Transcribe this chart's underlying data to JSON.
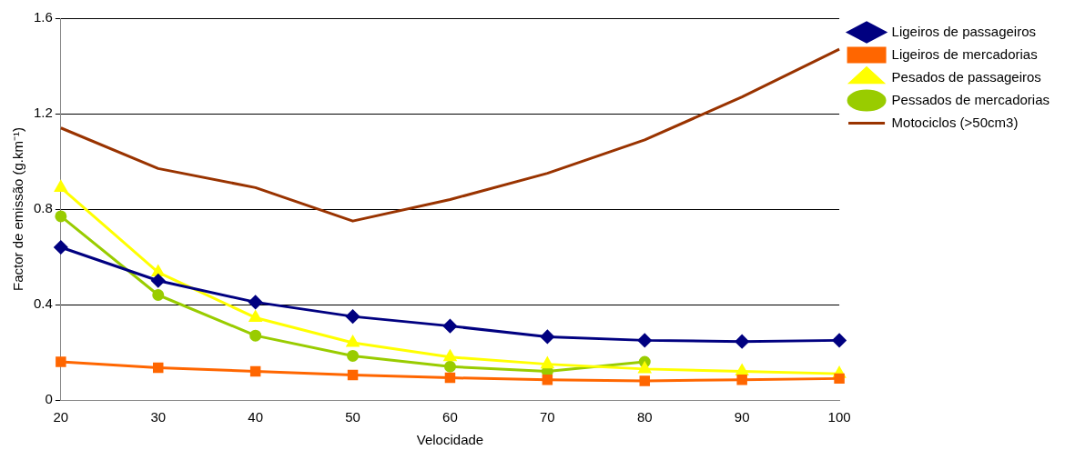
{
  "chart_data": {
    "type": "line",
    "xlabel": "Velocidade",
    "ylabel": "Factor de emissão (g.km⁻¹)",
    "categories": [
      "20",
      "30",
      "40",
      "50",
      "60",
      "70",
      "80",
      "90",
      "100"
    ],
    "ylim": [
      0,
      1.6
    ],
    "yticks": [
      0,
      0.4,
      0.8,
      1.2,
      1.6
    ],
    "grid": "y",
    "legend": "right",
    "series": [
      {
        "name": "Ligeiros de passageiros",
        "color": "#000080",
        "marker": "diamond",
        "values": [
          0.64,
          0.5,
          0.41,
          0.35,
          0.31,
          0.265,
          0.25,
          0.245,
          0.25
        ]
      },
      {
        "name": "Ligeiros de mercadorias",
        "color": "#ff6600",
        "marker": "square",
        "values": [
          0.16,
          0.135,
          0.12,
          0.105,
          0.093,
          0.085,
          0.08,
          0.085,
          0.09
        ]
      },
      {
        "name": "Pesados de passageiros",
        "color": "#ffff00",
        "marker": "triangle",
        "values": [
          0.89,
          0.535,
          0.345,
          0.24,
          0.18,
          0.15,
          0.13,
          0.12,
          0.11
        ]
      },
      {
        "name": "Pessados de mercadorias",
        "color": "#99cc00",
        "marker": "circle",
        "values": [
          0.77,
          0.44,
          0.27,
          0.185,
          0.14,
          0.12,
          0.16,
          null,
          null
        ]
      },
      {
        "name": "Motociclos (>50cm3)",
        "color": "#993300",
        "marker": "none",
        "values": [
          1.14,
          0.97,
          0.89,
          0.75,
          0.84,
          0.95,
          1.09,
          1.27,
          1.47
        ]
      }
    ]
  }
}
